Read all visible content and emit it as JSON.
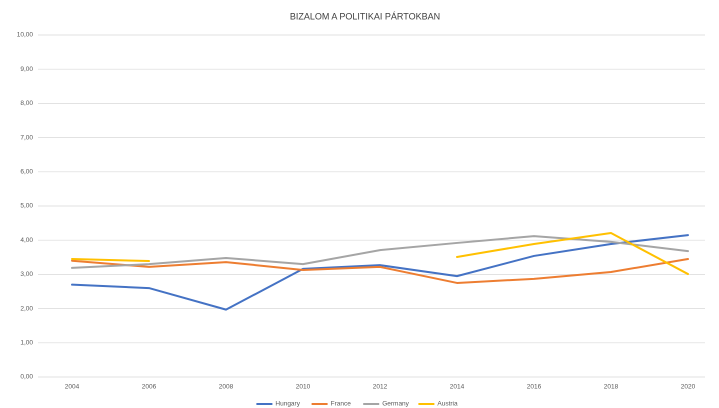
{
  "chart_data": {
    "type": "line",
    "title": "BIZALOM A POLITIKAI PÁRTOKBAN",
    "categories": [
      "2004",
      "2006",
      "2008",
      "2010",
      "2012",
      "2014",
      "2016",
      "2018",
      "2020"
    ],
    "series": [
      {
        "name": "Hungary",
        "color": "#4472c4",
        "values": [
          2.7,
          2.6,
          1.97,
          3.16,
          3.27,
          2.95,
          3.54,
          3.89,
          4.15
        ]
      },
      {
        "name": "France",
        "color": "#ed7d31",
        "values": [
          3.4,
          3.22,
          3.36,
          3.13,
          3.22,
          2.75,
          2.87,
          3.07,
          3.45
        ]
      },
      {
        "name": "Germany",
        "color": "#a5a5a5",
        "values": [
          3.19,
          3.3,
          3.48,
          3.3,
          3.71,
          3.92,
          4.12,
          3.95,
          3.68
        ]
      },
      {
        "name": "Austria",
        "color": "#ffc000",
        "values": [
          3.45,
          3.39,
          null,
          null,
          null,
          3.51,
          3.89,
          4.21,
          3.01
        ]
      }
    ],
    "ylim": [
      0,
      10
    ],
    "yticks": [
      {
        "value": 0,
        "label": "0,00"
      },
      {
        "value": 1,
        "label": "1,00"
      },
      {
        "value": 2,
        "label": "2,00"
      },
      {
        "value": 3,
        "label": "3,00"
      },
      {
        "value": 4,
        "label": "4,00"
      },
      {
        "value": 5,
        "label": "5,00"
      },
      {
        "value": 6,
        "label": "6,00"
      },
      {
        "value": 7,
        "label": "7,00"
      },
      {
        "value": 8,
        "label": "8,00"
      },
      {
        "value": 9,
        "label": "9,00"
      },
      {
        "value": 10,
        "label": "10,00"
      }
    ],
    "grid": true,
    "legend": "bottom"
  }
}
